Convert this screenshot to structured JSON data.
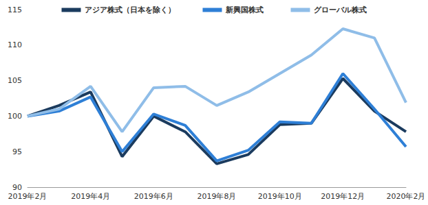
{
  "chart_data": {
    "type": "line",
    "categories": [
      "2019年2月",
      null,
      "2019年4月",
      null,
      "2019年6月",
      null,
      "2019年8月",
      null,
      "2019年10月",
      null,
      "2019年12月",
      null,
      "2020年2月"
    ],
    "series": [
      {
        "name": "アジア株式（日本を除く）",
        "color": "#1b3b5e",
        "values": [
          100,
          101.5,
          103.4,
          94.3,
          100,
          97.8,
          93.3,
          94.6,
          98.8,
          99,
          105.3,
          100.7,
          97.8
        ]
      },
      {
        "name": "新興国株式",
        "color": "#2e7fd6",
        "values": [
          100,
          100.7,
          102.7,
          95,
          100.3,
          98.7,
          93.7,
          95.2,
          99.2,
          99,
          106,
          101,
          95.7
        ]
      },
      {
        "name": "グローバル株式",
        "color": "#8fbde8",
        "values": [
          100,
          101,
          104.2,
          97.8,
          104,
          104.2,
          101.5,
          103.4,
          106,
          108.6,
          112.3,
          111,
          101.9
        ]
      }
    ],
    "ylim": [
      90,
      115
    ],
    "yticks": [
      90,
      95,
      100,
      105,
      110,
      115
    ],
    "grid": false,
    "legend": "top"
  }
}
